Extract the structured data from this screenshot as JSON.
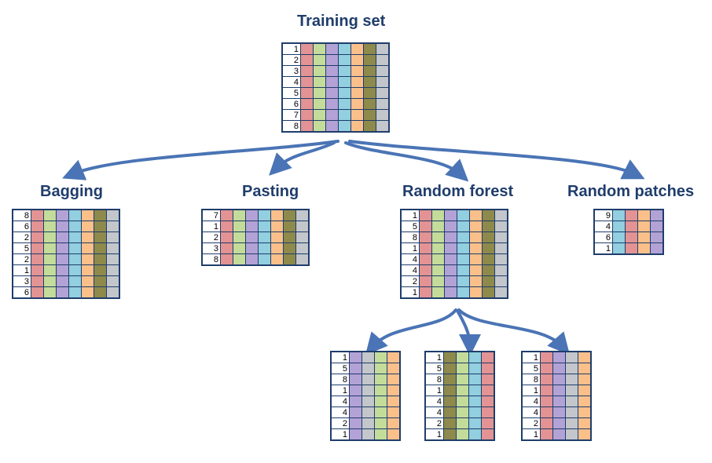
{
  "colors": {
    "title": "#1f3d6b",
    "border": "#1f3d6b",
    "arrow": "#4a74b5",
    "features": {
      "red": "#e39393",
      "green": "#c4dc9a",
      "purple": "#b3a2d6",
      "blue": "#92cfe0",
      "orange": "#fbc08a",
      "olive": "#8e8a4c",
      "gray": "#c3c6cb"
    }
  },
  "panels": [
    {
      "id": "training-set",
      "title": "Training set",
      "rows": [
        "1",
        "2",
        "3",
        "4",
        "5",
        "6",
        "7",
        "8"
      ],
      "columns": [
        "red",
        "green",
        "purple",
        "blue",
        "orange",
        "olive",
        "gray"
      ]
    },
    {
      "id": "bagging",
      "title": "Bagging",
      "rows": [
        "8",
        "6",
        "2",
        "5",
        "2",
        "1",
        "3",
        "6"
      ],
      "columns": [
        "red",
        "green",
        "purple",
        "blue",
        "orange",
        "olive",
        "gray"
      ]
    },
    {
      "id": "pasting",
      "title": "Pasting",
      "rows": [
        "7",
        "1",
        "2",
        "3",
        "8"
      ],
      "columns": [
        "red",
        "green",
        "purple",
        "blue",
        "orange",
        "olive",
        "gray"
      ]
    },
    {
      "id": "random-forest",
      "title": "Random forest",
      "rows": [
        "1",
        "5",
        "8",
        "1",
        "4",
        "4",
        "2",
        "1"
      ],
      "columns": [
        "red",
        "green",
        "purple",
        "blue",
        "orange",
        "olive",
        "gray"
      ]
    },
    {
      "id": "random-patches",
      "title": "Random patches",
      "rows": [
        "9",
        "4",
        "6",
        "1"
      ],
      "columns": [
        "blue",
        "red",
        "orange",
        "purple"
      ]
    },
    {
      "id": "forest-subset-1",
      "title": "",
      "rows": [
        "1",
        "5",
        "8",
        "1",
        "4",
        "4",
        "2",
        "1"
      ],
      "columns": [
        "purple",
        "gray",
        "green",
        "orange"
      ]
    },
    {
      "id": "forest-subset-2",
      "title": "",
      "rows": [
        "1",
        "5",
        "8",
        "1",
        "4",
        "4",
        "2",
        "1"
      ],
      "columns": [
        "olive",
        "green",
        "blue",
        "red"
      ]
    },
    {
      "id": "forest-subset-3",
      "title": "",
      "rows": [
        "1",
        "5",
        "8",
        "1",
        "4",
        "4",
        "2",
        "1"
      ],
      "columns": [
        "red",
        "purple",
        "gray",
        "orange"
      ]
    }
  ]
}
